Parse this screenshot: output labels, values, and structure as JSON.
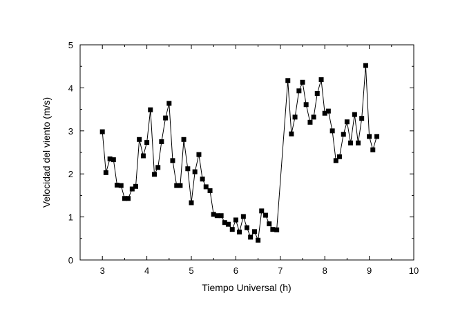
{
  "chart_data": {
    "type": "line",
    "title": "",
    "xlabel": "Tiempo Universal (h)",
    "ylabel": "Velocidad del viento (m/s)",
    "xlim": [
      2.5,
      10
    ],
    "ylim": [
      0,
      5
    ],
    "x_ticks": [
      3,
      4,
      5,
      6,
      7,
      8,
      9,
      10
    ],
    "y_ticks": [
      0,
      1,
      2,
      3,
      4,
      5
    ],
    "x_tick_labels": [
      "3",
      "4",
      "5",
      "6",
      "7",
      "8",
      "9",
      "10"
    ],
    "y_tick_labels": [
      "0",
      "1",
      "2",
      "3",
      "4",
      "5"
    ],
    "marker": "square",
    "line_color": "#000000",
    "marker_color": "#000000",
    "grid": false,
    "x": [
      3.0,
      3.08,
      3.17,
      3.25,
      3.33,
      3.42,
      3.5,
      3.58,
      3.67,
      3.75,
      3.83,
      3.92,
      4.0,
      4.08,
      4.17,
      4.25,
      4.33,
      4.42,
      4.5,
      4.58,
      4.67,
      4.75,
      4.83,
      4.92,
      5.0,
      5.08,
      5.17,
      5.25,
      5.33,
      5.42,
      5.5,
      5.58,
      5.67,
      5.75,
      5.83,
      5.92,
      6.0,
      6.08,
      6.17,
      6.25,
      6.33,
      6.42,
      6.5,
      6.58,
      6.67,
      6.75,
      6.83,
      6.92,
      7.17,
      7.25,
      7.33,
      7.42,
      7.5,
      7.58,
      7.67,
      7.75,
      7.83,
      7.92,
      8.0,
      8.08,
      8.17,
      8.25,
      8.33,
      8.42,
      8.5,
      8.58,
      8.67,
      8.75,
      8.83,
      8.92,
      9.0,
      9.08,
      9.17
    ],
    "y": [
      2.98,
      2.03,
      2.35,
      2.33,
      1.74,
      1.73,
      1.43,
      1.43,
      1.65,
      1.71,
      2.8,
      2.42,
      2.73,
      3.49,
      1.99,
      2.15,
      2.75,
      3.3,
      3.64,
      2.31,
      1.73,
      1.73,
      2.8,
      2.12,
      1.33,
      2.05,
      2.45,
      1.88,
      1.7,
      1.61,
      1.06,
      1.03,
      1.03,
      0.87,
      0.83,
      0.71,
      0.93,
      0.65,
      1.01,
      0.75,
      0.53,
      0.66,
      0.46,
      1.14,
      1.04,
      0.84,
      0.71,
      0.7,
      4.17,
      2.93,
      3.32,
      3.93,
      4.13,
      3.61,
      3.2,
      3.32,
      3.87,
      4.19,
      3.41,
      3.46,
      3.0,
      2.31,
      2.4,
      2.92,
      3.21,
      2.72,
      3.38,
      2.72,
      3.29,
      4.52,
      2.87,
      2.56,
      2.87
    ]
  }
}
